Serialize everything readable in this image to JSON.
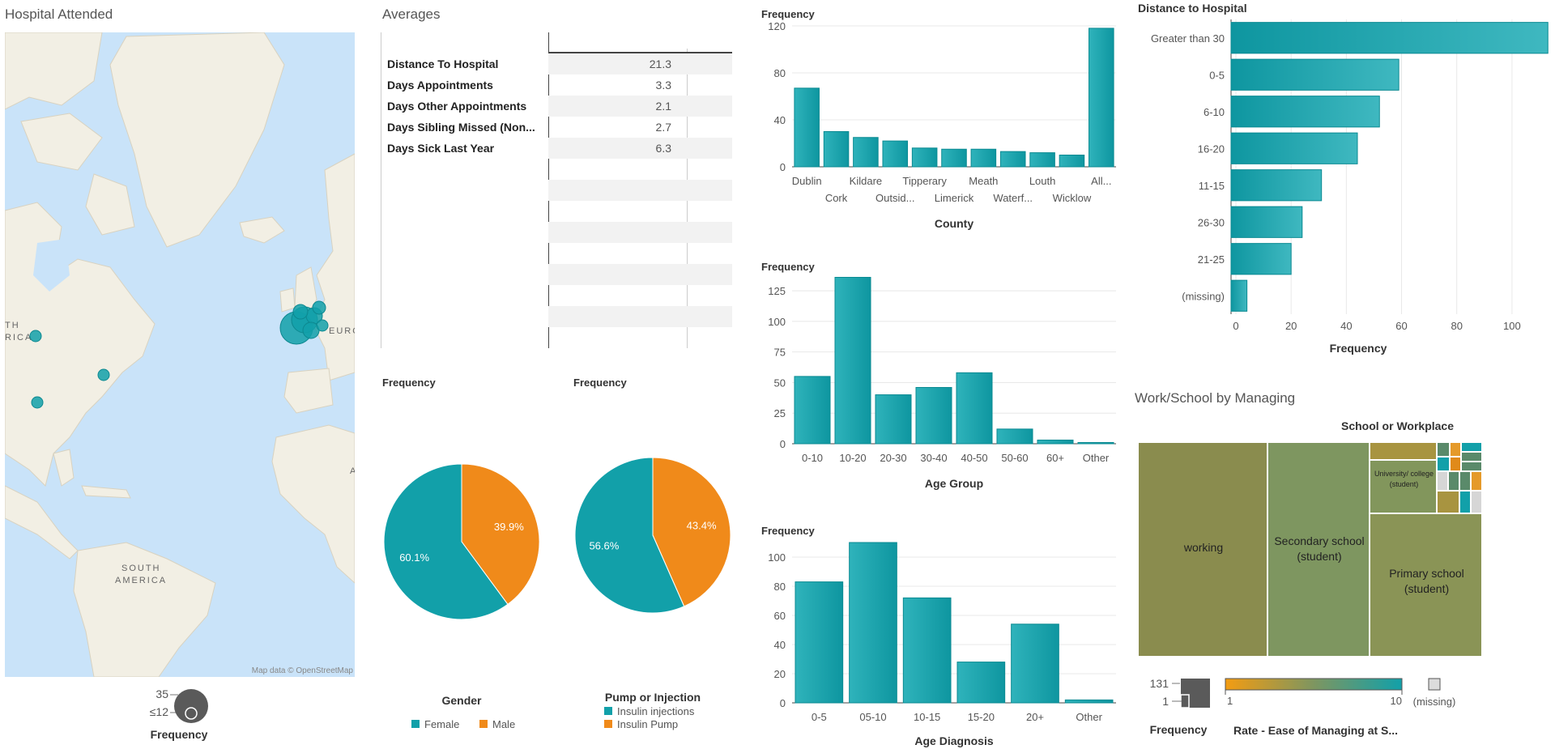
{
  "map": {
    "title": "Hospital Attended",
    "attribution": "Map data © OpenStreetMap",
    "labels": [
      "TH",
      "RICA",
      "EURO",
      "SOUTH",
      "AMERICA",
      "A"
    ],
    "legend": {
      "title": "Frequency",
      "max": "35",
      "min": "≤12"
    }
  },
  "averages": {
    "title": "Averages",
    "rows": [
      {
        "label": "Distance To Hospital",
        "value": "21.3"
      },
      {
        "label": "Days Appointments",
        "value": "3.3"
      },
      {
        "label": "Days Other Appointments",
        "value": "2.1"
      },
      {
        "label": "Days Sibling Missed (Non...",
        "value": "2.7"
      },
      {
        "label": "Days Sick Last Year",
        "value": "6.3"
      }
    ]
  },
  "colors": {
    "teal": "#12a0a9",
    "teal_dark": "#0a8a92",
    "orange": "#f08a1a",
    "olive": "#8b8c4c",
    "green": "#7e9660"
  },
  "chart_data": [
    {
      "id": "county",
      "type": "bar",
      "ylabel": "Frequency",
      "xlabel": "County",
      "categories": [
        "Dublin",
        "Cork",
        "Kildare",
        "Outsid...",
        "Tipperary",
        "Limerick",
        "Meath",
        "Waterf...",
        "Louth",
        "Wicklow",
        "All..."
      ],
      "values": [
        67,
        30,
        25,
        22,
        16,
        15,
        15,
        13,
        12,
        10,
        118
      ],
      "ylim": [
        0,
        120
      ],
      "yticks": [
        0,
        40,
        80,
        120
      ]
    },
    {
      "id": "distance",
      "type": "bar",
      "orientation": "horizontal",
      "title": "Distance to Hospital",
      "xlabel": "Frequency",
      "categories": [
        "Greater than 30",
        "0-5",
        "6-10",
        "16-20",
        "11-15",
        "26-30",
        "21-25",
        "(missing)"
      ],
      "values": [
        113,
        59,
        52,
        44,
        31,
        24,
        20,
        4
      ],
      "xlim": [
        0,
        110
      ],
      "xticks": [
        0,
        20,
        40,
        60,
        80,
        100
      ]
    },
    {
      "id": "age_group",
      "type": "bar",
      "ylabel": "Frequency",
      "xlabel": "Age Group",
      "categories": [
        "0-10",
        "10-20",
        "20-30",
        "30-40",
        "40-50",
        "50-60",
        "60+",
        "Other"
      ],
      "values": [
        55,
        136,
        40,
        46,
        58,
        12,
        3,
        1
      ],
      "ylim": [
        0,
        135
      ],
      "yticks": [
        0,
        25,
        50,
        75,
        100,
        125
      ]
    },
    {
      "id": "age_diagnosis",
      "type": "bar",
      "ylabel": "Frequency",
      "xlabel": "Age Diagnosis",
      "categories": [
        "0-5",
        "05-10",
        "10-15",
        "15-20",
        "20+",
        "Other"
      ],
      "values": [
        83,
        110,
        72,
        28,
        54,
        2
      ],
      "ylim": [
        0,
        110
      ],
      "yticks": [
        0,
        20,
        40,
        60,
        80,
        100
      ]
    },
    {
      "id": "gender",
      "type": "pie",
      "title": "Frequency",
      "legend_title": "Gender",
      "labels": [
        "Female",
        "Male"
      ],
      "values": [
        60.1,
        39.9
      ],
      "display": [
        "60.1%",
        "39.9%"
      ]
    },
    {
      "id": "pump",
      "type": "pie",
      "title": "Frequency",
      "legend_title": "Pump or Injection",
      "labels": [
        "Insulin injections",
        "Insulin Pump"
      ],
      "values": [
        56.6,
        43.4
      ],
      "display": [
        "56.6%",
        "43.4%"
      ]
    }
  ],
  "treemap": {
    "title": "Work/School by Managing",
    "subtitle": "School or Workplace",
    "labels": {
      "working": "working",
      "secondary": "Secondary school (student)",
      "primary": "Primary school (student)",
      "university": "University/ college (student)"
    },
    "size_legend": {
      "title": "Frequency",
      "max": "131",
      "min": "1"
    },
    "color_legend": {
      "title": "Rate - Ease of Managing at S...",
      "min": "1",
      "max": "10",
      "missing": "(missing)"
    }
  }
}
